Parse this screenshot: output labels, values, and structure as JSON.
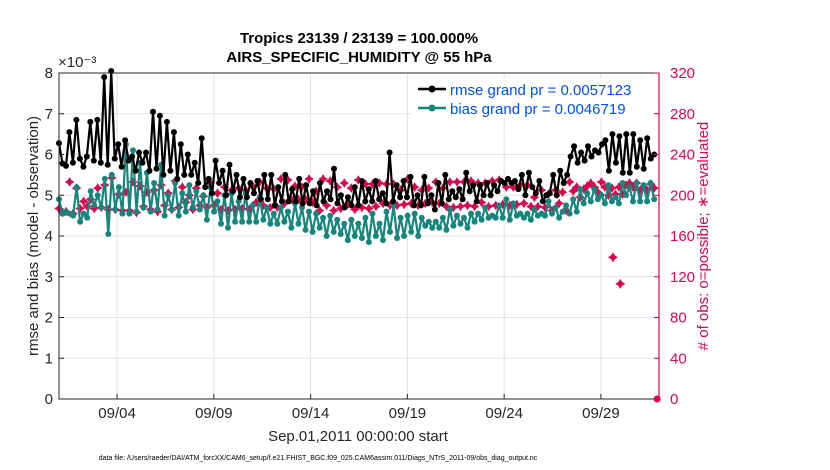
{
  "chart_data": {
    "type": "line",
    "title_line1": "Tropics 23139 / 23139 = 100.000%",
    "title_line2": "AIRS_SPECIFIC_HUMIDITY @ 55 hPa",
    "ylabel_left": "rmse and bias (model - observation)",
    "ylabel_right": "# of obs: o=possible; ∗=evaluated",
    "xlabel": "Sep.01,2011 00:00:00 start",
    "exponent_label": "×10⁻³",
    "ylim_left": [
      0,
      8
    ],
    "ylim_right": [
      0,
      320
    ],
    "xlim": [
      0,
      31
    ],
    "yticks_left": [
      "0",
      "1",
      "2",
      "3",
      "4",
      "5",
      "6",
      "7",
      "8"
    ],
    "yticks_right": [
      "0",
      "40",
      "80",
      "120",
      "160",
      "200",
      "240",
      "280",
      "320"
    ],
    "xticks": [
      {
        "t": 3.0,
        "label": "09/04"
      },
      {
        "t": 8.0,
        "label": "09/09"
      },
      {
        "t": 13.0,
        "label": "09/14"
      },
      {
        "t": 18.0,
        "label": "09/19"
      },
      {
        "t": 23.0,
        "label": "09/24"
      },
      {
        "t": 28.0,
        "label": "09/29"
      }
    ],
    "grid": true,
    "legend_position": "top-right",
    "series": [
      {
        "name": "rmse grand pr = 0.0057123",
        "axis": "left",
        "color": "#000000",
        "values": [
          6.28,
          5.78,
          5.72,
          6.55,
          5.8,
          6.85,
          5.9,
          5.7,
          5.95,
          6.8,
          5.85,
          6.85,
          5.8,
          7.9,
          5.75,
          8.05,
          5.9,
          6.25,
          5.7,
          6.35,
          5.85,
          5.95,
          5.6,
          6.05,
          5.8,
          6.05,
          5.6,
          7.05,
          5.65,
          6.95,
          5.5,
          6.8,
          5.6,
          6.55,
          5.4,
          6.25,
          5.5,
          6.0,
          5.5,
          5.8,
          5.3,
          6.4,
          5.2,
          5.4,
          5.05,
          5.85,
          5.3,
          5.6,
          5.0,
          5.75,
          5.1,
          5.5,
          4.95,
          5.4,
          4.95,
          5.3,
          5.05,
          5.35,
          4.9,
          5.5,
          4.9,
          5.5,
          4.75,
          5.2,
          4.85,
          5.5,
          4.85,
          5.15,
          4.85,
          5.4,
          4.8,
          5.25,
          4.8,
          5.1,
          4.75,
          5.3,
          4.85,
          5.1,
          4.9,
          5.65,
          4.8,
          5.0,
          4.7,
          4.95,
          4.75,
          5.2,
          4.75,
          5.35,
          4.85,
          5.15,
          4.85,
          5.35,
          4.9,
          5.05,
          4.8,
          6.05,
          4.85,
          5.25,
          4.95,
          5.35,
          4.95,
          5.45,
          4.75,
          5.0,
          4.75,
          5.45,
          4.8,
          5.0,
          4.65,
          5.3,
          4.8,
          5.5,
          4.9,
          5.1,
          4.95,
          5.15,
          4.9,
          5.55,
          5.1,
          5.25,
          4.85,
          5.25,
          5.0,
          5.3,
          5.0,
          5.25,
          5.1,
          5.35,
          5.3,
          5.4,
          5.3,
          5.35,
          5.15,
          5.5,
          5.0,
          5.55,
          5.2,
          5.05,
          5.35,
          4.85,
          5.0,
          5.05,
          5.5,
          5.0,
          5.6,
          5.3,
          5.5,
          5.95,
          6.2,
          5.8,
          6.05,
          5.85,
          6.2,
          5.95,
          6.1,
          6.05,
          6.25,
          6.35,
          5.6,
          6.5,
          5.8,
          6.45,
          5.55,
          6.5,
          5.55,
          6.5,
          5.7,
          6.35,
          5.65,
          6.4,
          5.9,
          6.0
        ],
        "marker": "o"
      },
      {
        "name": "bias grand pr = 0.0046719",
        "axis": "left",
        "color": "#15857d",
        "values": [
          4.9,
          4.55,
          4.6,
          4.55,
          4.5,
          5.2,
          4.35,
          4.55,
          4.45,
          5.1,
          4.75,
          5.0,
          4.7,
          5.4,
          4.05,
          5.5,
          4.65,
          5.2,
          4.55,
          6.25,
          4.55,
          6.1,
          4.6,
          5.8,
          4.7,
          5.55,
          4.6,
          5.3,
          4.65,
          5.75,
          4.5,
          5.0,
          4.65,
          5.3,
          4.5,
          5.05,
          4.6,
          5.25,
          4.7,
          5.1,
          4.65,
          5.0,
          4.4,
          5.2,
          4.6,
          4.85,
          4.3,
          5.0,
          4.2,
          5.05,
          4.35,
          4.85,
          4.35,
          5.05,
          4.35,
          4.75,
          4.35,
          4.95,
          4.4,
          4.7,
          4.3,
          4.55,
          4.3,
          4.7,
          4.35,
          4.6,
          4.2,
          4.8,
          4.3,
          4.7,
          4.15,
          4.6,
          4.1,
          4.55,
          4.2,
          4.45,
          4.0,
          4.5,
          4.1,
          4.4,
          4.05,
          4.3,
          3.9,
          4.4,
          4.0,
          4.3,
          3.95,
          4.45,
          3.85,
          4.55,
          4.0,
          4.3,
          3.9,
          4.6,
          4.1,
          4.75,
          3.95,
          4.45,
          4.0,
          4.5,
          4.1,
          4.55,
          4.0,
          4.45,
          4.25,
          4.35,
          4.2,
          4.35,
          4.2,
          4.45,
          4.15,
          4.65,
          4.25,
          4.5,
          4.3,
          4.45,
          4.2,
          4.55,
          4.35,
          4.55,
          4.4,
          4.7,
          4.45,
          4.5,
          4.45,
          4.75,
          4.45,
          4.9,
          4.4,
          4.8,
          4.5,
          4.55,
          4.45,
          4.55,
          4.4,
          4.65,
          4.5,
          4.55,
          4.5,
          4.85,
          4.55,
          4.7,
          4.45,
          4.6,
          4.75,
          4.55,
          4.9,
          4.6,
          5.15,
          4.8,
          5.05,
          4.85,
          5.15,
          4.9,
          5.0,
          4.8,
          5.25,
          4.85,
          4.95,
          4.8,
          5.3,
          5.0,
          5.2,
          4.85,
          5.3,
          4.85,
          5.25,
          4.85,
          5.3,
          4.9
        ],
        "marker": "o"
      },
      {
        "name": "obs evaluated",
        "axis": "right",
        "color": "#d8084e",
        "values": [
          187,
          183,
          184,
          213,
          182,
          207,
          187,
          194,
          189,
          196,
          187,
          207,
          188,
          210,
          186,
          217,
          186,
          201,
          185,
          203,
          185,
          213,
          183,
          209,
          189,
          203,
          186,
          205,
          184,
          210,
          190,
          202,
          186,
          214,
          188,
          208,
          193,
          200,
          186,
          207,
          190,
          199,
          188,
          212,
          190,
          202,
          186,
          208,
          185,
          205,
          186,
          207,
          187,
          205,
          186,
          209,
          193,
          213,
          190,
          207,
          188,
          206,
          188,
          216,
          192,
          215,
          196,
          209,
          196,
          208,
          196,
          216,
          193,
          204,
          185,
          216,
          190,
          214,
          185,
          208,
          187,
          212,
          191,
          207,
          186,
          215,
          188,
          211,
          187,
          211,
          189,
          212,
          192,
          211,
          190,
          211,
          190,
          205,
          191,
          216,
          192,
          208,
          190,
          205,
          192,
          207,
          193,
          213,
          192,
          207,
          189,
          213,
          188,
          213,
          189,
          213,
          190,
          214,
          189,
          212,
          193,
          212,
          189,
          214,
          190,
          215,
          191,
          208,
          190,
          208,
          191,
          210,
          192,
          210,
          189,
          198,
          189,
          205,
          188,
          201,
          185,
          205,
          192,
          203,
          185,
          213,
          204,
          208,
          198,
          206,
          209,
          212,
          208,
          203,
          213,
          208,
          200,
          207,
          201,
          208,
          201,
          210,
          212,
          208,
          212,
          205,
          208,
          205,
          211,
          207
        ],
        "outliers": [
          {
            "t": 28.62,
            "v": 139
          },
          {
            "t": 29.0,
            "v": 113
          }
        ],
        "marker": "*"
      },
      {
        "name": "obs possible",
        "axis": "right",
        "color": "#d8084e",
        "values": [
          0
        ],
        "marker": "o"
      }
    ],
    "legend": [
      "rmse grand pr = 0.0057123",
      "bias grand pr = 0.0046719"
    ],
    "footer": "data file: /Users/raeder/DAI/ATM_forcXX/CAM6_setup/f.e21.FHIST_BGC.f09_025.CAM6assim.011/Diags_NTrS_2011-09/obs_diag_output.nc"
  }
}
